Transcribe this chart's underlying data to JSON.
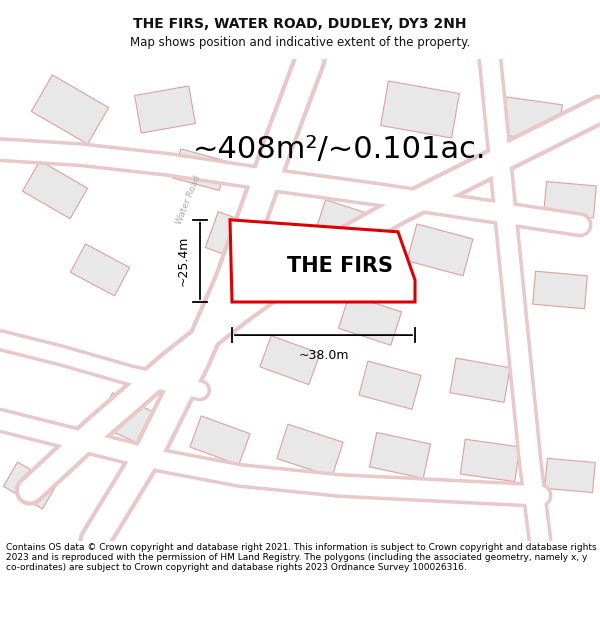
{
  "title": "THE FIRS, WATER ROAD, DUDLEY, DY3 2NH",
  "subtitle": "Map shows position and indicative extent of the property.",
  "area_text": "~408m²/~0.101ac.",
  "property_label": "THE FIRS",
  "dim_width": "~38.0m",
  "dim_height": "~25.4m",
  "footer": "Contains OS data © Crown copyright and database right 2021. This information is subject to Crown copyright and database rights 2023 and is reproduced with the permission of HM Land Registry. The polygons (including the associated geometry, namely x, y co-ordinates) are subject to Crown copyright and database rights 2023 Ordnance Survey 100026316.",
  "bg_color": "#ffffff",
  "map_bg": "#f2eeea",
  "road_fill": "#ffffff",
  "road_stroke": "#e8c8c8",
  "building_fill": "#e8e8e8",
  "building_stroke": "#e0a0a0",
  "highlight_color": "#dd0000",
  "title_fontsize": 10,
  "subtitle_fontsize": 8.5,
  "area_fontsize": 22,
  "label_fontsize": 15,
  "footer_fontsize": 6.5,
  "water_road_label": "Water Road"
}
